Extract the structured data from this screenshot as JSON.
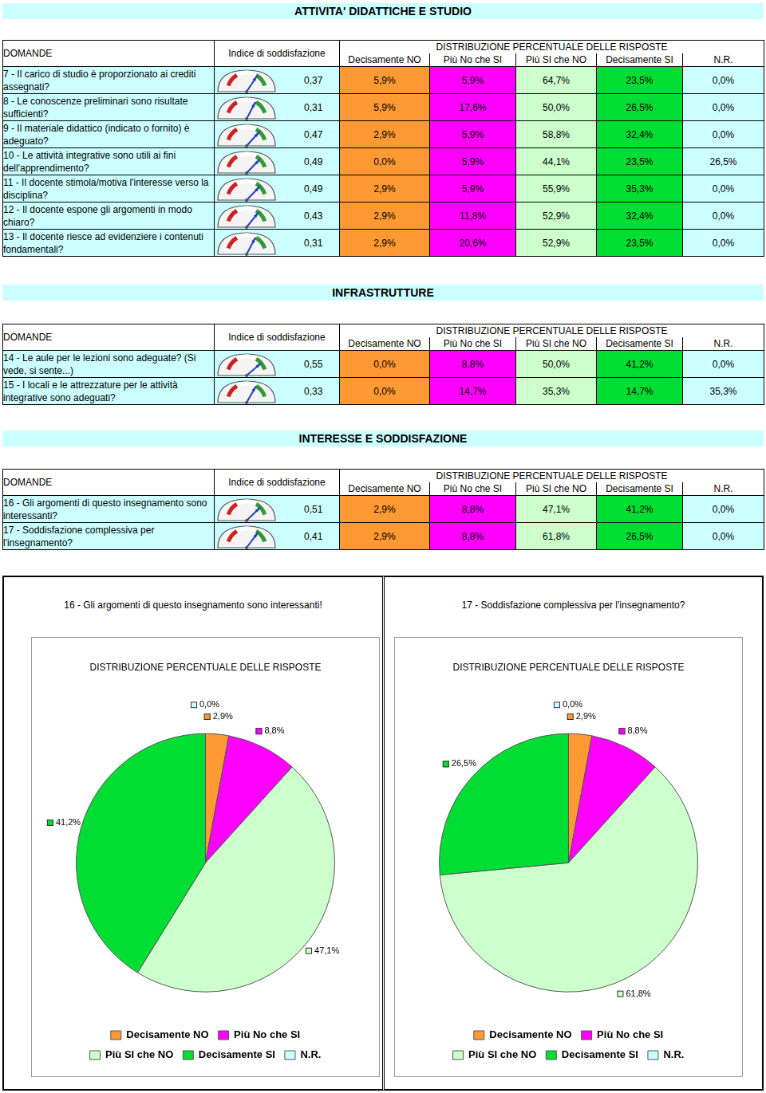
{
  "sections": [
    {
      "title": "ATTIVITA' DIDATTICHE E STUDIO",
      "header": {
        "question": "DOMANDE",
        "index": "Indice di soddisfazione",
        "distribution": "DISTRIBUZIONE PERCENTUALE DELLE RISPOSTE",
        "columns": [
          "Decisamente NO",
          "Più No che SI",
          "Più SI che NO",
          "Decisamente SI",
          "N.R."
        ]
      },
      "rows": [
        {
          "question": "7 - Il carico di studio è proporzionato ai crediti assegnati?",
          "index": 0.37,
          "index_label": "0,37",
          "values": [
            "5,9%",
            "5,9%",
            "64,7%",
            "23,5%",
            "0,0%"
          ]
        },
        {
          "question": "8 - Le conoscenze preliminari sono risultate sufficienti?",
          "index": 0.31,
          "index_label": "0,31",
          "values": [
            "5,9%",
            "17,6%",
            "50,0%",
            "26,5%",
            "0,0%"
          ]
        },
        {
          "question": "9 - Il materiale didattico (indicato o fornito) è adeguato?",
          "index": 0.47,
          "index_label": "0,47",
          "values": [
            "2,9%",
            "5,9%",
            "58,8%",
            "32,4%",
            "0,0%"
          ]
        },
        {
          "question": "10 - Le attività integrative sono utili ai fini dell'apprendimento?",
          "index": 0.49,
          "index_label": "0,49",
          "values": [
            "0,0%",
            "5,9%",
            "44,1%",
            "23,5%",
            "26,5%"
          ]
        },
        {
          "question": "11 - Il docente stimola/motiva l'interesse verso la disciplina?",
          "index": 0.49,
          "index_label": "0,49",
          "values": [
            "2,9%",
            "5,9%",
            "55,9%",
            "35,3%",
            "0,0%"
          ]
        },
        {
          "question": "12 - Il docente espone gli argomenti in modo chiaro?",
          "index": 0.43,
          "index_label": "0,43",
          "values": [
            "2,9%",
            "11,8%",
            "52,9%",
            "32,4%",
            "0,0%"
          ]
        },
        {
          "question": "13 - Il docente riesce ad evidenziere i contenuti fondamentali?",
          "index": 0.31,
          "index_label": "0,31",
          "values": [
            "2,9%",
            "20,6%",
            "52,9%",
            "23,5%",
            "0,0%"
          ]
        }
      ]
    },
    {
      "title": "INFRASTRUTTURE",
      "header": {
        "question": "DOMANDE",
        "index": "Indice di soddisfazione",
        "distribution": "DISTRIBUZIONE PERCENTUALE DELLE RISPOSTE",
        "columns": [
          "Decisamente NO",
          "Più No che SI",
          "Più SI che NO",
          "Decisamente SI",
          "N.R."
        ]
      },
      "rows": [
        {
          "question": "14 - Le aule per le lezioni sono adeguate? (Si vede, si sente...)",
          "index": 0.55,
          "index_label": "0,55",
          "values": [
            "0,0%",
            "8,8%",
            "50,0%",
            "41,2%",
            "0,0%"
          ]
        },
        {
          "question": "15 - I locali e le attrezzature per le attività integrative sono adeguati?",
          "index": 0.33,
          "index_label": "0,33",
          "values": [
            "0,0%",
            "14,7%",
            "35,3%",
            "14,7%",
            "35,3%"
          ]
        }
      ]
    },
    {
      "title": "INTERESSE E SODDISFAZIONE",
      "header": {
        "question": "DOMANDE",
        "index": "Indice di soddisfazione",
        "distribution": "DISTRIBUZIONE PERCENTUALE DELLE RISPOSTE",
        "columns": [
          "Decisamente NO",
          "Più No che SI",
          "Più SI che NO",
          "Decisamente SI",
          "N.R."
        ]
      },
      "rows": [
        {
          "question": "16 - Gli argomenti di questo insegnamento sono interessanti?",
          "index": 0.51,
          "index_label": "0,51",
          "values": [
            "2,9%",
            "8,8%",
            "47,1%",
            "41,2%",
            "0,0%"
          ]
        },
        {
          "question": "17 - Soddisfazione complessiva per l'insegnamento?",
          "index": 0.41,
          "index_label": "0,41",
          "values": [
            "2,9%",
            "8,8%",
            "61,8%",
            "26,5%",
            "0,0%"
          ]
        }
      ]
    }
  ],
  "index_range": [
    -1,
    1
  ],
  "chart_data": [
    {
      "type": "pie",
      "subtitle": "16 - Gli argomenti di questo insegnamento sono interessanti!",
      "title": "DISTRIBUZIONE PERCENTUALE DELLE RISPOSTE",
      "categories": [
        "Decisamente NO",
        "Più No che SI",
        "Più SI che NO",
        "Decisamente SI",
        "N.R."
      ],
      "values": [
        2.9,
        8.8,
        47.1,
        41.2,
        0.0
      ],
      "value_labels": [
        "2,9%",
        "8,8%",
        "47,1%",
        "41,2%",
        "0,0%"
      ],
      "colors": [
        "#ff9933",
        "#ff00ff",
        "#ccffcc",
        "#00dd33",
        "#ccffff"
      ],
      "data_labels": true,
      "legend": "bottom"
    },
    {
      "type": "pie",
      "subtitle": "17 - Soddisfazione complessiva per l'insegnamento?",
      "title": "DISTRIBUZIONE PERCENTUALE DELLE RISPOSTE",
      "categories": [
        "Decisamente NO",
        "Più No che SI",
        "Più SI che NO",
        "Decisamente SI",
        "N.R."
      ],
      "values": [
        2.9,
        8.8,
        61.8,
        26.5,
        0.0
      ],
      "value_labels": [
        "2,9%",
        "8,8%",
        "61,8%",
        "26,5%",
        "0,0%"
      ],
      "colors": [
        "#ff9933",
        "#ff00ff",
        "#ccffcc",
        "#00dd33",
        "#ccffff"
      ],
      "data_labels": true,
      "legend": "bottom"
    }
  ]
}
